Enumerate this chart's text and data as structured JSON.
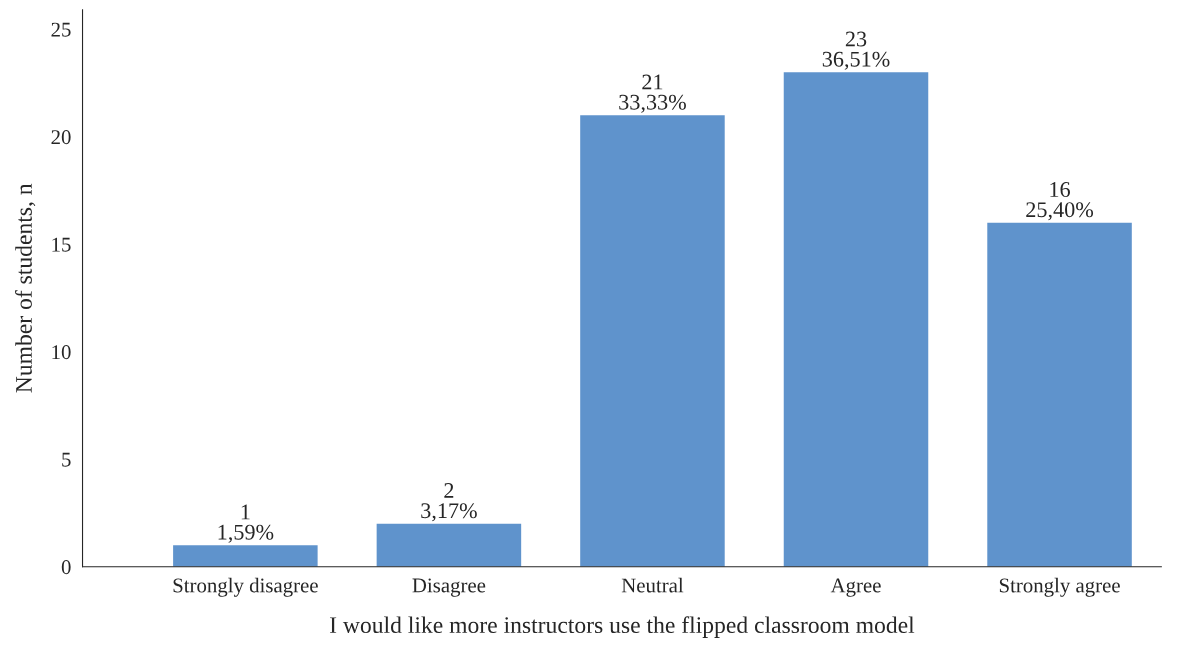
{
  "chart_data": {
    "type": "bar",
    "xlabel": "I would like more instructors use the flipped classroom model",
    "ylabel": "Number of students, n",
    "categories": [
      "Strongly disagree",
      "Disagree",
      "Neutral",
      "Agree",
      "Strongly agree"
    ],
    "values": [
      1,
      2,
      21,
      23,
      16
    ],
    "value_labels": [
      "1\n1,59%",
      "2\n3,17%",
      "21\n33,33%",
      "23\n36,51%",
      "16\n25,40%"
    ],
    "color": "#5f93cc",
    "ylim": [
      0,
      25.9
    ],
    "yticks": [
      0,
      5,
      10,
      15,
      20,
      25
    ],
    "grid": false,
    "legend": false
  }
}
